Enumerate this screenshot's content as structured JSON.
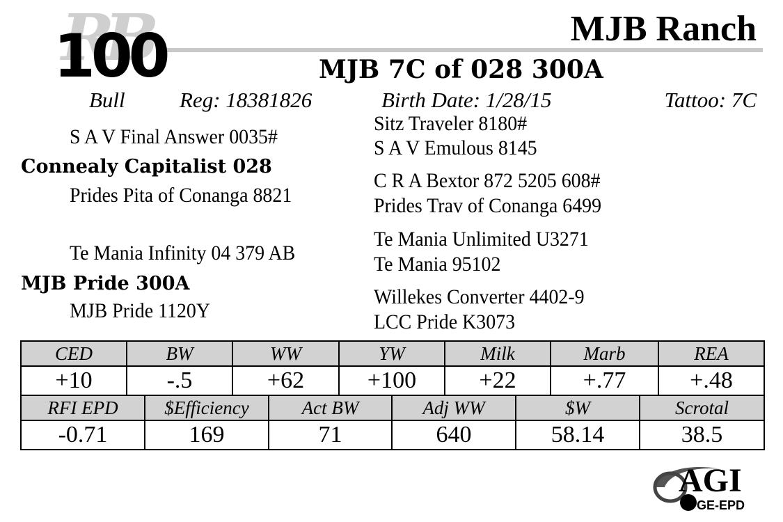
{
  "header": {
    "watermark": "RB",
    "lot_number": "100",
    "ranch_name": "MJB Ranch",
    "animal_name": "MJB 7C of 028 300A"
  },
  "info": {
    "sex": "Bull",
    "registration": "Reg: 18381826",
    "birth_date": "Birth Date:  1/28/15",
    "tattoo": "Tattoo: 7C"
  },
  "pedigree": {
    "sire_sire": "S A V Final Answer 0035#",
    "sire": "Connealy Capitalist 028",
    "sire_dam": "Prides Pita of Conanga 8821",
    "dam_sire": "Te Mania Infinity 04 379 AB",
    "dam": "MJB Pride 300A",
    "dam_dam": "MJB Pride 1120Y",
    "ggp": [
      "Sitz Traveler 8180#",
      "S A V Emulous 8145",
      "C R A Bextor 872 5205 608#",
      "Prides Trav of Conanga 6499",
      "Te Mania Unlimited U3271",
      "Te Mania 95102",
      "Willekes Converter 4402-9",
      "LCC Pride K3073"
    ]
  },
  "epd_row1": {
    "headers": [
      "CED",
      "BW",
      "WW",
      "YW",
      "Milk",
      "Marb",
      "REA"
    ],
    "values": [
      "+10",
      "-.5",
      "+62",
      "+100",
      "+22",
      "+.77",
      "+.48"
    ]
  },
  "epd_row2": {
    "headers": [
      "RFI EPD",
      "$Efficiency",
      "Act BW",
      "Adj WW",
      "$W",
      "Scrotal"
    ],
    "values": [
      "-0.71",
      "169",
      "71",
      "640",
      "58.14",
      "38.5"
    ]
  },
  "logo": {
    "name": "AGI",
    "sub": "GE-EPD"
  }
}
